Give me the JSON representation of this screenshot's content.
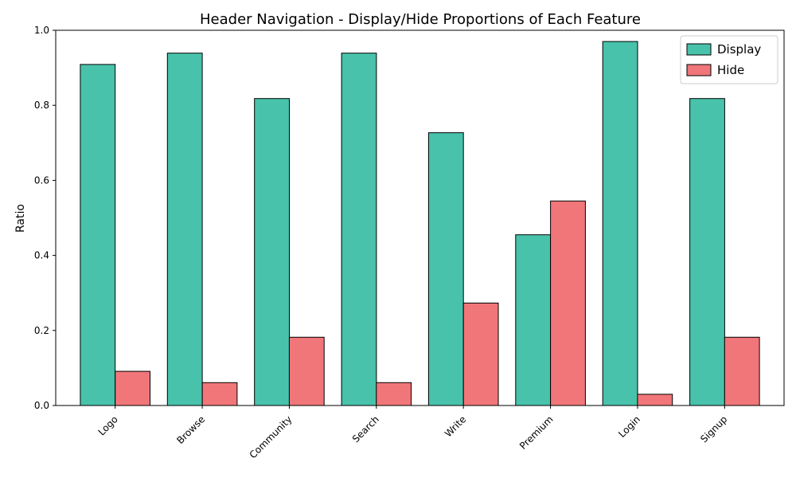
{
  "chart_data": {
    "type": "bar",
    "title": "Header Navigation - Display/Hide Proportions of Each Feature",
    "xlabel": "",
    "ylabel": "Ratio",
    "categories": [
      "Logo",
      "Browse",
      "Community",
      "Search",
      "Write",
      "Premium",
      "Login",
      "Signup"
    ],
    "series": [
      {
        "name": "Display",
        "color": "#48c2ab",
        "values": [
          0.909,
          0.939,
          0.818,
          0.939,
          0.727,
          0.455,
          0.97,
          0.818
        ]
      },
      {
        "name": "Hide",
        "color": "#f07679",
        "values": [
          0.091,
          0.061,
          0.182,
          0.061,
          0.273,
          0.545,
          0.03,
          0.182
        ]
      }
    ],
    "ylim": [
      0,
      1.0
    ],
    "yticks": [
      "0.0",
      "0.2",
      "0.4",
      "0.6",
      "0.8",
      "1.0"
    ],
    "grid": false,
    "legend_position": "top-right"
  }
}
